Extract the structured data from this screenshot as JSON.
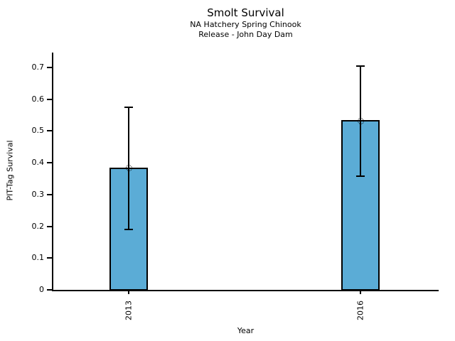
{
  "chart_data": {
    "type": "bar",
    "title": "Smolt Survival",
    "subtitle": [
      "NA Hatchery Spring Chinook",
      "Release - John Day Dam"
    ],
    "xlabel": "Year",
    "ylabel": "PIT-Tag Survival",
    "categories": [
      "2013",
      "2016"
    ],
    "values": [
      0.383,
      0.532
    ],
    "error_upper": [
      0.575,
      0.705
    ],
    "error_lower": [
      0.19,
      0.357
    ],
    "ytick_labels": [
      "0",
      "0.1",
      "0.2",
      "0.3",
      "0.4",
      "0.5",
      "0.6",
      "0.7"
    ],
    "ylim": [
      0,
      0.75
    ],
    "grid": false,
    "legend": null,
    "bar_color": "#5BACD6",
    "bar_edge_color": "#000000",
    "error_color": "#000000",
    "marker": "open-circle",
    "xtick_label_rotation_deg": 90
  }
}
